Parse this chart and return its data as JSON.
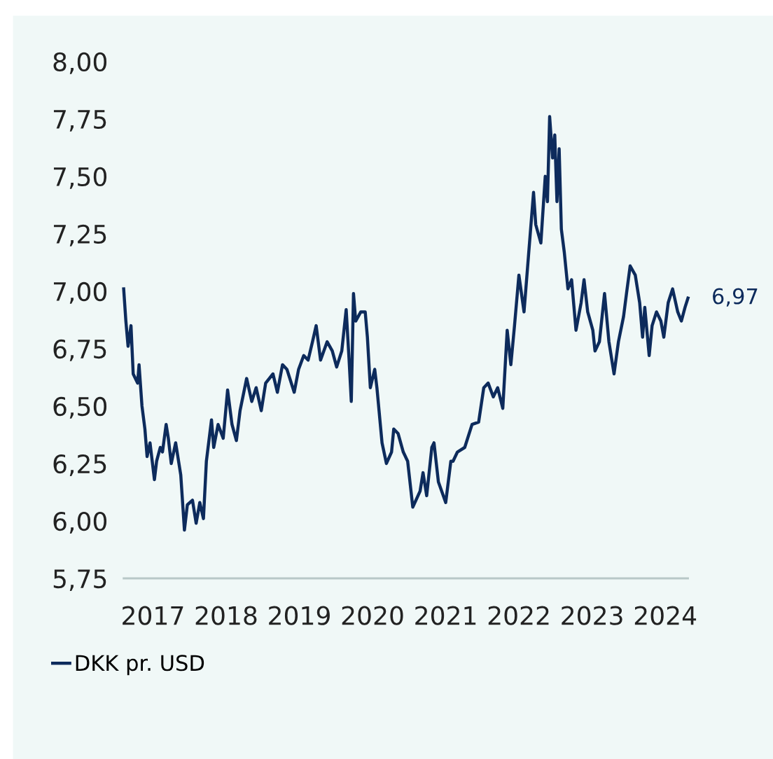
{
  "chart_data": {
    "type": "line",
    "x": [
      2017.0,
      2017.03,
      2017.06,
      2017.1,
      2017.13,
      2017.19,
      2017.21,
      2017.25,
      2017.29,
      2017.32,
      2017.36,
      2017.42,
      2017.45,
      2017.5,
      2017.53,
      2017.58,
      2017.61,
      2017.65,
      2017.71,
      2017.78,
      2017.83,
      2017.87,
      2017.94,
      2017.99,
      2018.04,
      2018.09,
      2018.13,
      2018.2,
      2018.23,
      2018.29,
      2018.36,
      2018.42,
      2018.48,
      2018.54,
      2018.59,
      2018.68,
      2018.75,
      2018.81,
      2018.88,
      2018.94,
      2019.04,
      2019.1,
      2019.17,
      2019.23,
      2019.33,
      2019.39,
      2019.46,
      2019.52,
      2019.58,
      2019.63,
      2019.69,
      2019.78,
      2019.85,
      2019.91,
      2019.98,
      2020.04,
      2020.08,
      2020.11,
      2020.14,
      2020.17,
      2020.24,
      2020.3,
      2020.33,
      2020.37,
      2020.43,
      2020.46,
      2020.53,
      2020.59,
      2020.66,
      2020.69,
      2020.75,
      2020.82,
      2020.88,
      2020.95,
      2021.05,
      2021.09,
      2021.14,
      2021.21,
      2021.24,
      2021.3,
      2021.4,
      2021.47,
      2021.5,
      2021.56,
      2021.66,
      2021.76,
      2021.85,
      2021.92,
      2021.98,
      2022.05,
      2022.11,
      2022.18,
      2022.24,
      2022.29,
      2022.34,
      2022.4,
      2022.47,
      2022.53,
      2022.6,
      2022.63,
      2022.7,
      2022.76,
      2022.79,
      2022.82,
      2022.86,
      2022.89,
      2022.92,
      2022.95,
      2022.98,
      2023.02,
      2023.07,
      2023.12,
      2023.18,
      2023.25,
      2023.29,
      2023.34,
      2023.41,
      2023.44,
      2023.5,
      2023.57,
      2023.63,
      2023.7,
      2023.76,
      2023.83,
      2023.87,
      2023.92,
      2023.99,
      2024.05,
      2024.09,
      2024.12,
      2024.18,
      2024.22,
      2024.28,
      2024.34,
      2024.38,
      2024.44,
      2024.5,
      2024.57,
      2024.62,
      2024.67,
      2024.71
    ],
    "series": [
      {
        "name": "DKK pr. USD",
        "color": "#0d2b5c",
        "values": [
          7.01,
          6.87,
          6.76,
          6.85,
          6.64,
          6.6,
          6.68,
          6.5,
          6.4,
          6.28,
          6.34,
          6.18,
          6.26,
          6.32,
          6.3,
          6.42,
          6.36,
          6.25,
          6.34,
          6.2,
          5.96,
          6.07,
          6.09,
          5.99,
          6.08,
          6.01,
          6.26,
          6.44,
          6.32,
          6.42,
          6.36,
          6.57,
          6.42,
          6.35,
          6.48,
          6.62,
          6.52,
          6.58,
          6.48,
          6.6,
          6.64,
          6.56,
          6.68,
          6.66,
          6.56,
          6.66,
          6.72,
          6.7,
          6.78,
          6.85,
          6.7,
          6.78,
          6.74,
          6.67,
          6.74,
          6.92,
          6.7,
          6.52,
          6.99,
          6.87,
          6.91,
          6.91,
          6.8,
          6.58,
          6.66,
          6.58,
          6.34,
          6.25,
          6.3,
          6.4,
          6.38,
          6.3,
          6.26,
          6.06,
          6.13,
          6.21,
          6.11,
          6.32,
          6.34,
          6.17,
          6.08,
          6.26,
          6.26,
          6.3,
          6.32,
          6.42,
          6.43,
          6.58,
          6.6,
          6.54,
          6.58,
          6.49,
          6.83,
          6.68,
          6.85,
          7.07,
          6.91,
          7.15,
          7.43,
          7.29,
          7.21,
          7.5,
          7.39,
          7.76,
          7.58,
          7.68,
          7.39,
          7.62,
          7.27,
          7.17,
          7.01,
          7.05,
          6.83,
          6.95,
          7.05,
          6.91,
          6.83,
          6.74,
          6.78,
          6.99,
          6.78,
          6.64,
          6.78,
          6.89,
          6.99,
          7.11,
          7.07,
          6.95,
          6.8,
          6.93,
          6.72,
          6.85,
          6.91,
          6.87,
          6.8,
          6.95,
          7.01,
          6.91,
          6.87,
          6.93,
          6.97
        ]
      }
    ],
    "xlim": [
      2017.0,
      2024.71
    ],
    "xticks": [
      {
        "value": 2017.4,
        "label": "2017"
      },
      {
        "value": 2018.4,
        "label": "2018"
      },
      {
        "value": 2019.4,
        "label": "2019"
      },
      {
        "value": 2020.4,
        "label": "2020"
      },
      {
        "value": 2021.4,
        "label": "2021"
      },
      {
        "value": 2022.4,
        "label": "2022"
      },
      {
        "value": 2023.4,
        "label": "2023"
      },
      {
        "value": 2024.4,
        "label": "2024"
      }
    ],
    "ylim": [
      5.75,
      8.0
    ],
    "yticks": [
      {
        "value": 5.75,
        "label": "5,75"
      },
      {
        "value": 6.0,
        "label": "6,00"
      },
      {
        "value": 6.25,
        "label": "6,25"
      },
      {
        "value": 6.5,
        "label": "6,50"
      },
      {
        "value": 6.75,
        "label": "6,75"
      },
      {
        "value": 7.0,
        "label": "7,00"
      },
      {
        "value": 7.25,
        "label": "7,25"
      },
      {
        "value": 7.5,
        "label": "7,50"
      },
      {
        "value": 7.75,
        "label": "7,75"
      },
      {
        "value": 8.0,
        "label": "8,00"
      }
    ],
    "annotations": [
      {
        "text": "6,97",
        "x": 2024.71,
        "y": 6.97
      }
    ],
    "grid": false,
    "legend": "bottom left"
  }
}
